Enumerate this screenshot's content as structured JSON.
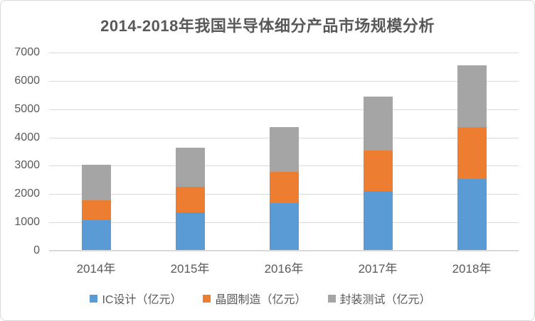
{
  "chart_data": {
    "type": "bar",
    "stacked": true,
    "title": "2014-2018年我国半导体细分产品市场规模分析",
    "categories": [
      "2014年",
      "2015年",
      "2016年",
      "2017年",
      "2018年"
    ],
    "series": [
      {
        "name": "IC设计（亿元）",
        "color": "#5B9BD5",
        "values": [
          1047,
          1325,
          1644,
          2074,
          2519
        ]
      },
      {
        "name": "晶圆制造（亿元）",
        "color": "#ED7D31",
        "values": [
          712,
          901,
          1127,
          1448,
          1818
        ]
      },
      {
        "name": "封装测试（亿元）",
        "color": "#A5A5A5",
        "values": [
          1256,
          1384,
          1564,
          1890,
          2194
        ]
      }
    ],
    "totals": [
      3015,
      3610,
      4335,
      5412,
      6531
    ],
    "xlabel": "",
    "ylabel": "",
    "ylim": [
      0,
      7000
    ],
    "yticks": [
      0,
      1000,
      2000,
      3000,
      4000,
      5000,
      6000,
      7000
    ],
    "grid": true,
    "legend_position": "bottom",
    "colors": {
      "text": "#595959",
      "gridline": "#D9D9D9",
      "frame_border": "#D9D9D9",
      "background": "#FFFFFF"
    }
  }
}
